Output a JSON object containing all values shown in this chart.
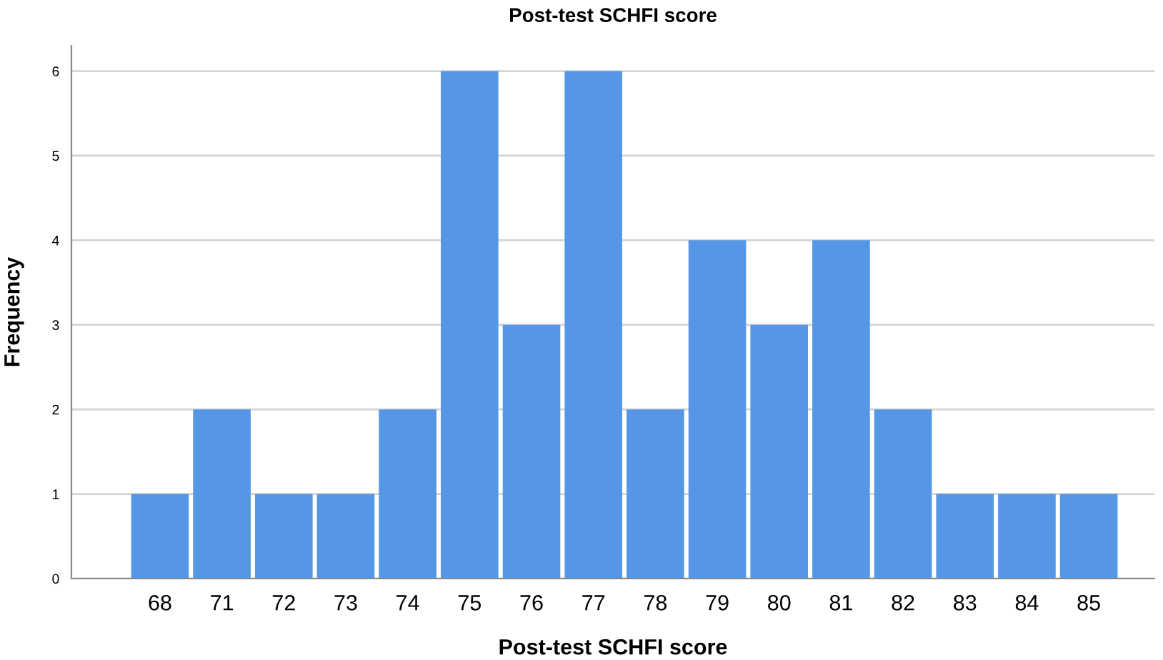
{
  "chart_data": {
    "type": "bar",
    "title": "Post-test SCHFI score",
    "xlabel": "Post-test SCHFI score",
    "ylabel": "Frequency",
    "categories": [
      "68",
      "71",
      "72",
      "73",
      "74",
      "75",
      "76",
      "77",
      "78",
      "79",
      "80",
      "81",
      "82",
      "83",
      "84",
      "85"
    ],
    "values": [
      1,
      2,
      1,
      1,
      2,
      6,
      3,
      6,
      2,
      4,
      3,
      4,
      2,
      1,
      1,
      1
    ],
    "color": "#5596e6",
    "ylim": [
      0,
      6.3
    ],
    "yticks": [
      0,
      1,
      2,
      3,
      4,
      5,
      6
    ],
    "grid": "y"
  }
}
